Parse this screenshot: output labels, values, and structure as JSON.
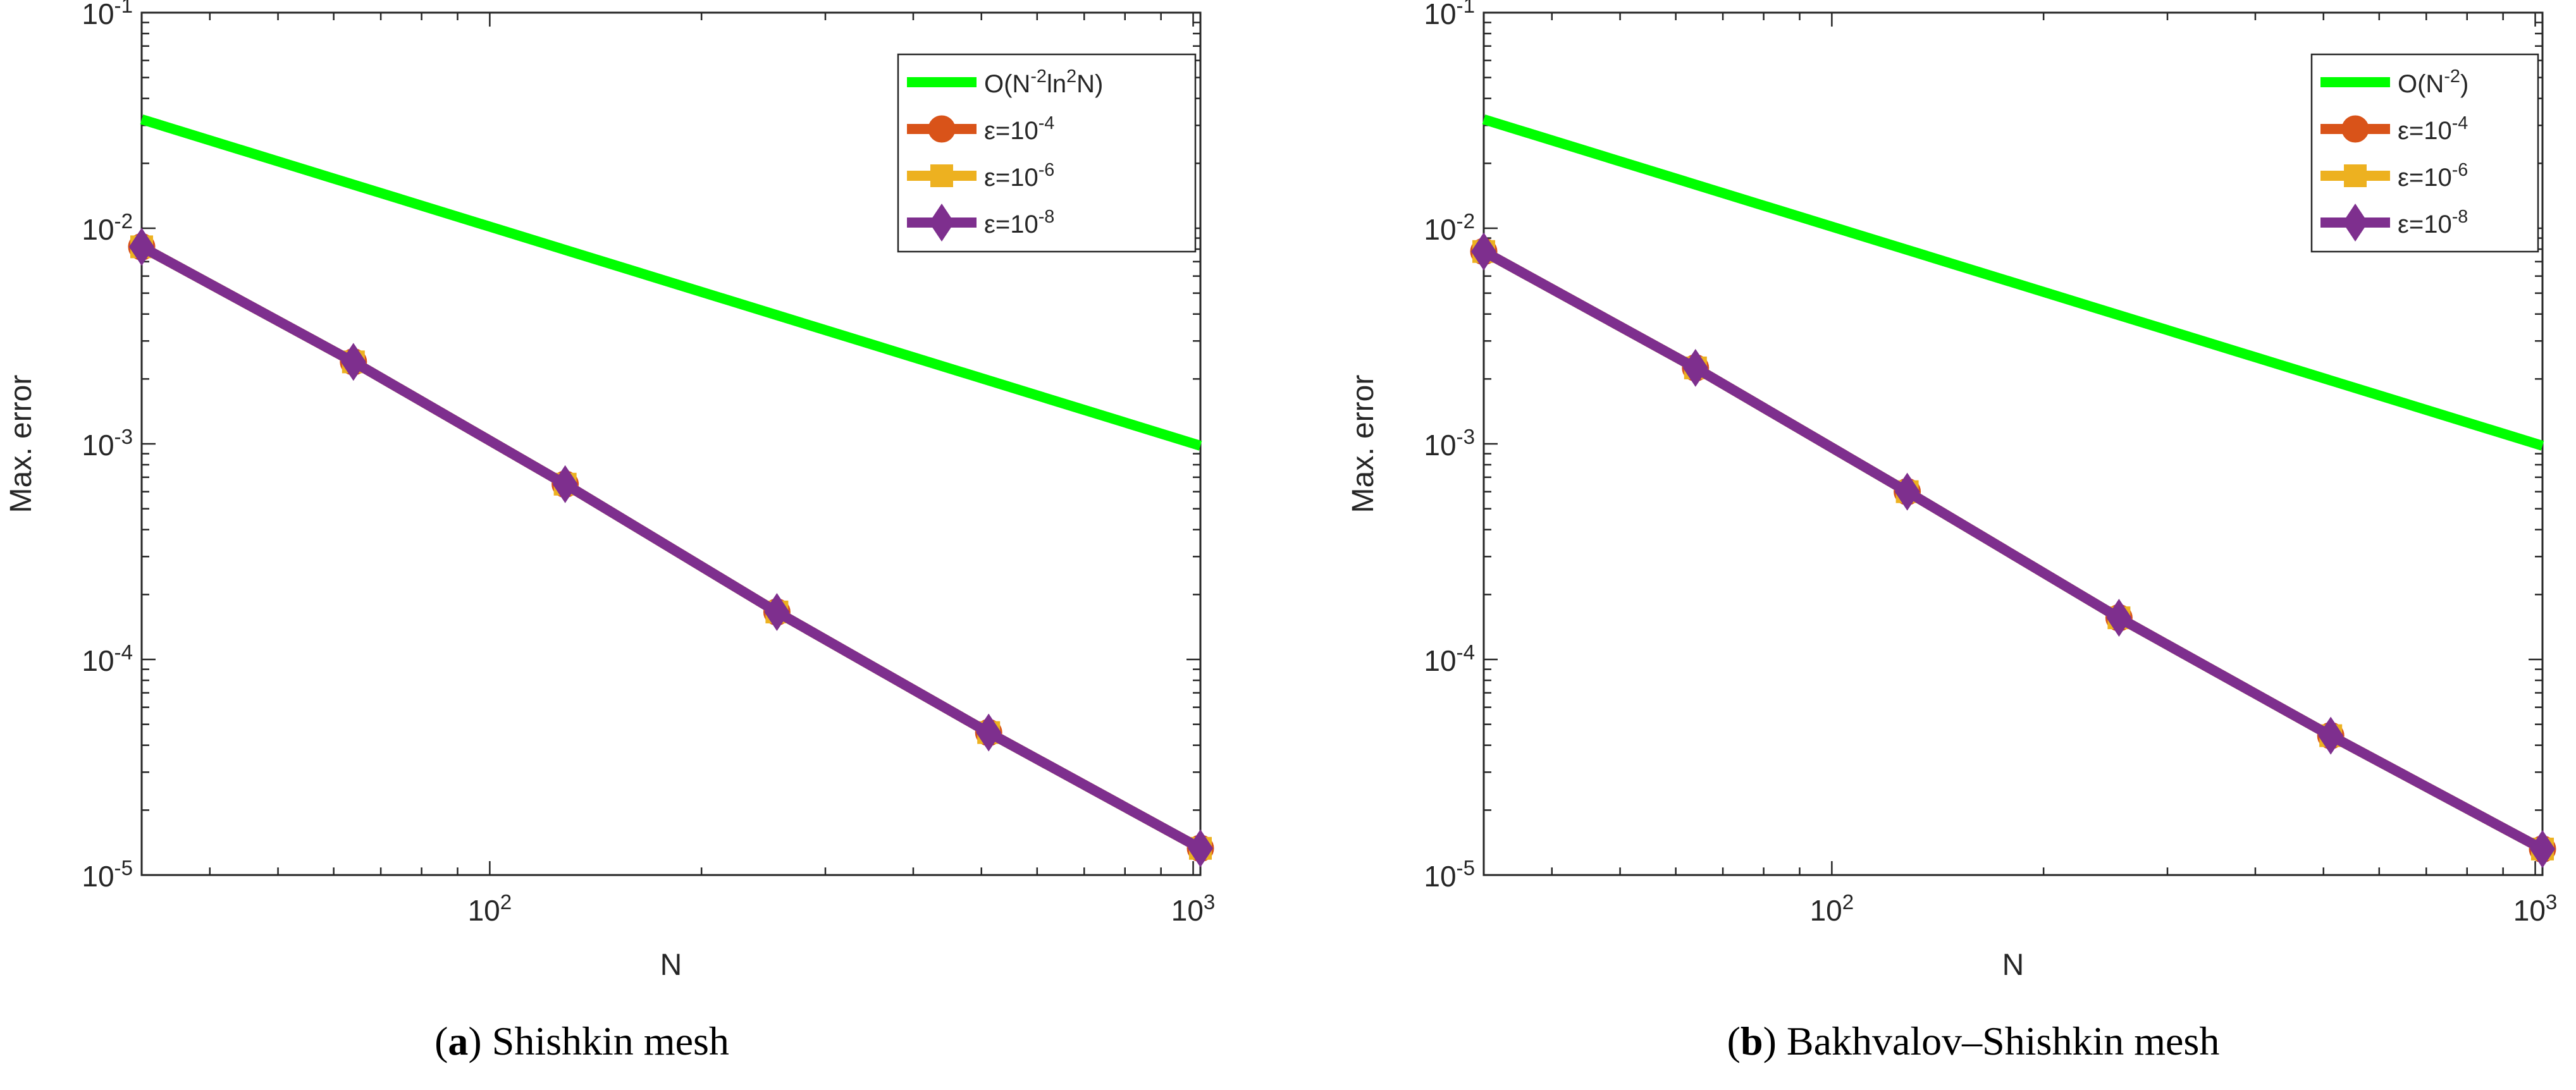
{
  "colors": {
    "reference": "#00ff00",
    "eps4": "#d95319",
    "eps6": "#edb120",
    "eps8": "#7e2f8e",
    "axis": "#262626"
  },
  "captions": [
    {
      "label": "a",
      "text": "Shishkin mesh"
    },
    {
      "label": "b",
      "text": "Bakhvalov–Shishkin mesh"
    }
  ],
  "chart_data": [
    {
      "type": "line",
      "xscale": "log",
      "yscale": "log",
      "xlabel": "N",
      "ylabel": "Max. error",
      "xlim": [
        32,
        1024
      ],
      "ylim": [
        1e-05,
        0.1
      ],
      "xticks": [
        {
          "value": 100,
          "base": "10",
          "exp": "2"
        },
        {
          "value": 1000,
          "base": "10",
          "exp": "3"
        }
      ],
      "yticks": [
        {
          "value": 0.1,
          "base": "10",
          "exp": "-1"
        },
        {
          "value": 0.01,
          "base": "10",
          "exp": "-2"
        },
        {
          "value": 0.001,
          "base": "10",
          "exp": "-3"
        },
        {
          "value": 0.0001,
          "base": "10",
          "exp": "-4"
        },
        {
          "value": 1e-05,
          "base": "10",
          "exp": "-5"
        }
      ],
      "legend_position": "top-right",
      "series": [
        {
          "name": "O(N-2ln2N)",
          "legend_parts": [
            "O(N",
            "-2",
            "ln",
            "2",
            "N)"
          ],
          "marker": "none",
          "color_key": "reference",
          "x": [
            32,
            1024
          ],
          "y": [
            0.032,
            0.00098
          ]
        },
        {
          "name": "ε=10-4",
          "legend_parts": [
            "ε=10",
            "-4"
          ],
          "marker": "circle",
          "color_key": "eps4",
          "x": [
            32,
            64,
            128,
            256,
            512,
            1024
          ],
          "y": [
            0.0082,
            0.0024,
            0.00065,
            0.000166,
            4.58e-05,
            1.33e-05
          ]
        },
        {
          "name": "ε=10-6",
          "legend_parts": [
            "ε=10",
            "-6"
          ],
          "marker": "square",
          "color_key": "eps6",
          "x": [
            32,
            64,
            128,
            256,
            512,
            1024
          ],
          "y": [
            0.0082,
            0.0024,
            0.00065,
            0.000166,
            4.58e-05,
            1.33e-05
          ]
        },
        {
          "name": "ε=10-8",
          "legend_parts": [
            "ε=10",
            "-8"
          ],
          "marker": "diamond",
          "color_key": "eps8",
          "x": [
            32,
            64,
            128,
            256,
            512,
            1024
          ],
          "y": [
            0.0082,
            0.0024,
            0.00065,
            0.000166,
            4.58e-05,
            1.33e-05
          ]
        }
      ]
    },
    {
      "type": "line",
      "xscale": "log",
      "yscale": "log",
      "xlabel": "N",
      "ylabel": "Max. error",
      "xlim": [
        32,
        1024
      ],
      "ylim": [
        1e-05,
        0.1
      ],
      "xticks": [
        {
          "value": 100,
          "base": "10",
          "exp": "2"
        },
        {
          "value": 1000,
          "base": "10",
          "exp": "3"
        }
      ],
      "yticks": [
        {
          "value": 0.1,
          "base": "10",
          "exp": "-1"
        },
        {
          "value": 0.01,
          "base": "10",
          "exp": "-2"
        },
        {
          "value": 0.001,
          "base": "10",
          "exp": "-3"
        },
        {
          "value": 0.0001,
          "base": "10",
          "exp": "-4"
        },
        {
          "value": 1e-05,
          "base": "10",
          "exp": "-5"
        }
      ],
      "legend_position": "top-right",
      "series": [
        {
          "name": "O(N-2)",
          "legend_parts": [
            "O(N",
            "-2",
            ")"
          ],
          "marker": "none",
          "color_key": "reference",
          "x": [
            32,
            1024
          ],
          "y": [
            0.032,
            0.00098
          ]
        },
        {
          "name": "ε=10-4",
          "legend_parts": [
            "ε=10",
            "-4"
          ],
          "marker": "circle",
          "color_key": "eps4",
          "x": [
            32,
            64,
            128,
            256,
            512,
            1024
          ],
          "y": [
            0.0078,
            0.00225,
            0.0006,
            0.000156,
            4.43e-05,
            1.32e-05
          ]
        },
        {
          "name": "ε=10-6",
          "legend_parts": [
            "ε=10",
            "-6"
          ],
          "marker": "square",
          "color_key": "eps6",
          "x": [
            32,
            64,
            128,
            256,
            512,
            1024
          ],
          "y": [
            0.0078,
            0.00225,
            0.0006,
            0.000156,
            4.43e-05,
            1.32e-05
          ]
        },
        {
          "name": "ε=10-8",
          "legend_parts": [
            "ε=10",
            "-8"
          ],
          "marker": "diamond",
          "color_key": "eps8",
          "x": [
            32,
            64,
            128,
            256,
            512,
            1024
          ],
          "y": [
            0.0078,
            0.00225,
            0.0006,
            0.000156,
            4.43e-05,
            1.32e-05
          ]
        }
      ]
    }
  ]
}
